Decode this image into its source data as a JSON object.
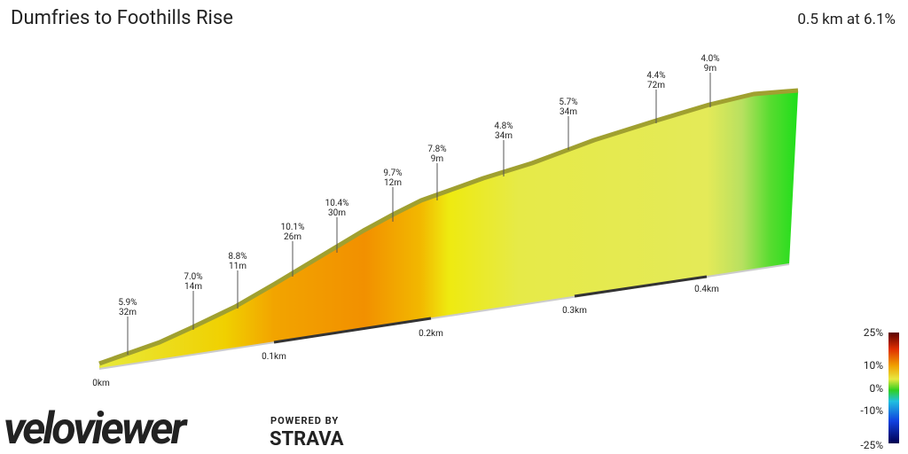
{
  "chart_data": {
    "type": "profile",
    "title": "Dumfries to Foothills Rise",
    "subtitle": "0.5 km at 6.1%",
    "annotations": [
      {
        "grade": "5.9%",
        "length": "32m"
      },
      {
        "grade": "7.0%",
        "length": "14m"
      },
      {
        "grade": "8.8%",
        "length": "11m"
      },
      {
        "grade": "10.1%",
        "length": "26m"
      },
      {
        "grade": "10.4%",
        "length": "30m"
      },
      {
        "grade": "9.7%",
        "length": "12m"
      },
      {
        "grade": "7.8%",
        "length": "9m"
      },
      {
        "grade": "4.8%",
        "length": "34m"
      },
      {
        "grade": "5.7%",
        "length": "34m"
      },
      {
        "grade": "4.4%",
        "length": "72m"
      },
      {
        "grade": "4.0%",
        "length": "9m"
      }
    ],
    "distance_labels": [
      "0km",
      "0.1km",
      "0.2km",
      "0.3km",
      "0.4km"
    ],
    "legend_labels": [
      "25%",
      "10%",
      "0%",
      "-10%",
      "-25%"
    ],
    "logo": {
      "brand": "veloviewer",
      "powered": "POWERED BY",
      "partner": "STRAVA"
    }
  }
}
